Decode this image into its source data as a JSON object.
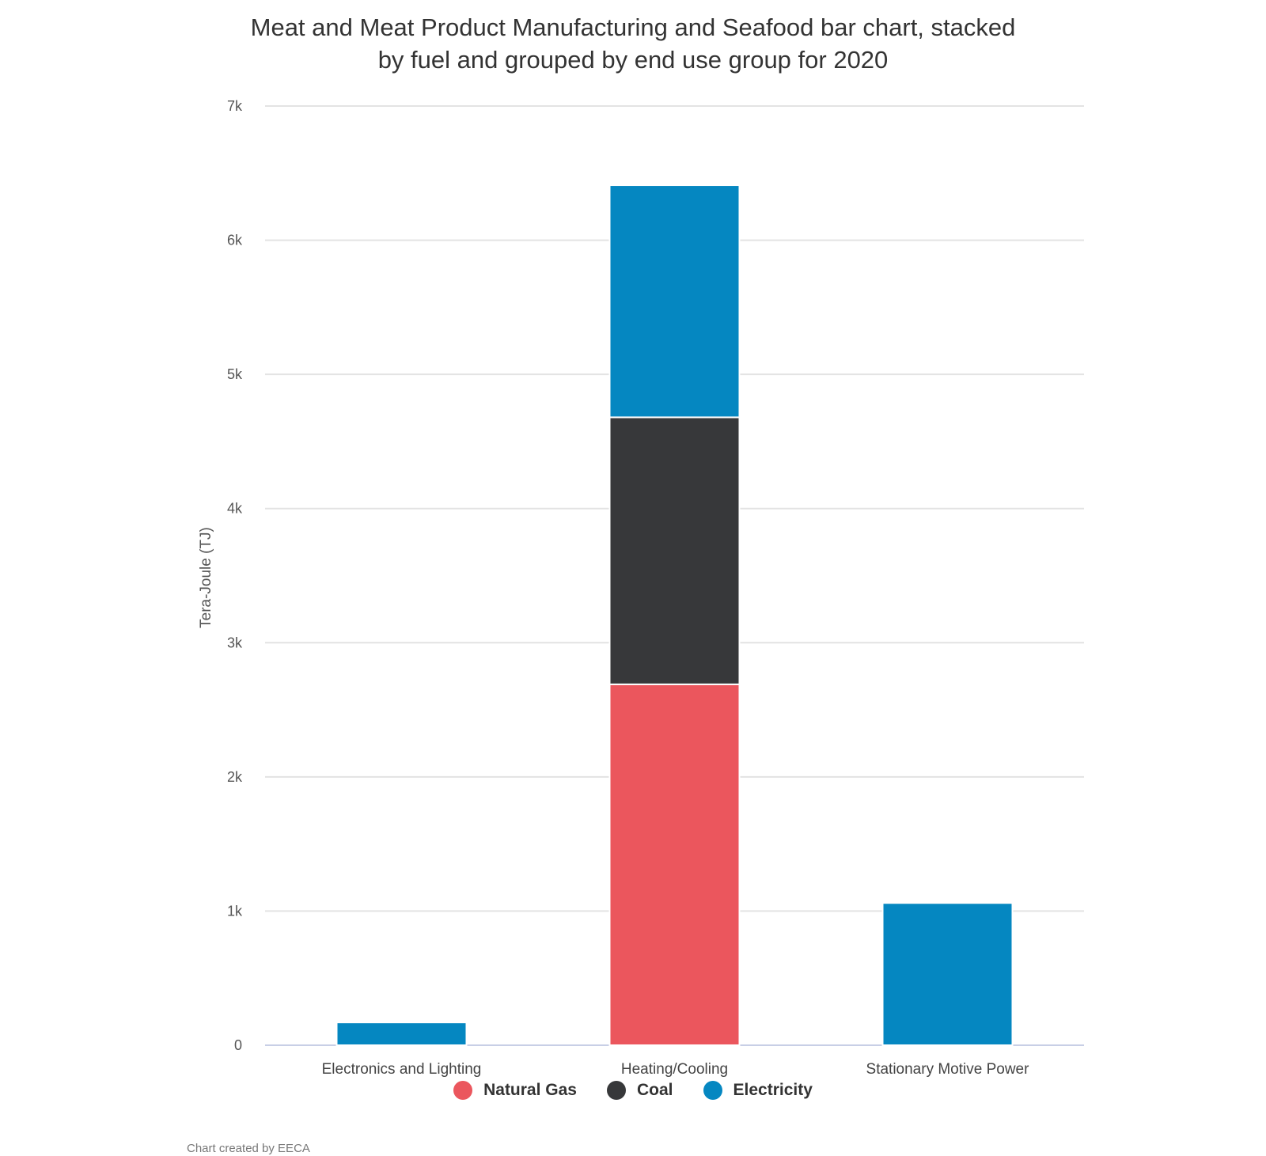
{
  "title_lines": [
    "Meat and Meat Product Manufacturing and Seafood bar chart, stacked",
    "by fuel and grouped by end use group for 2020"
  ],
  "credit": "Chart created by EECA",
  "chart_data": {
    "type": "bar",
    "stacked": true,
    "title": "Meat and Meat Product Manufacturing and Seafood bar chart, stacked by fuel and grouped by end use group for 2020",
    "xlabel": "",
    "ylabel": "Tera-Joule (TJ)",
    "ylim": [
      0,
      7000
    ],
    "yticks": [
      0,
      1000,
      2000,
      3000,
      4000,
      5000,
      6000,
      7000
    ],
    "ytick_labels": [
      "0",
      "1k",
      "2k",
      "3k",
      "4k",
      "5k",
      "6k",
      "7k"
    ],
    "grid": true,
    "legend_position": "bottom",
    "categories": [
      "Electronics and Lighting",
      "Heating/Cooling",
      "Stationary Motive Power"
    ],
    "series": [
      {
        "name": "Natural Gas",
        "color": "#EB565D",
        "values": [
          0,
          2690,
          0
        ]
      },
      {
        "name": "Coal",
        "color": "#37383A",
        "values": [
          0,
          1990,
          0
        ]
      },
      {
        "name": "Electricity",
        "color": "#0587C1",
        "values": [
          170,
          1730,
          1060
        ]
      }
    ]
  }
}
